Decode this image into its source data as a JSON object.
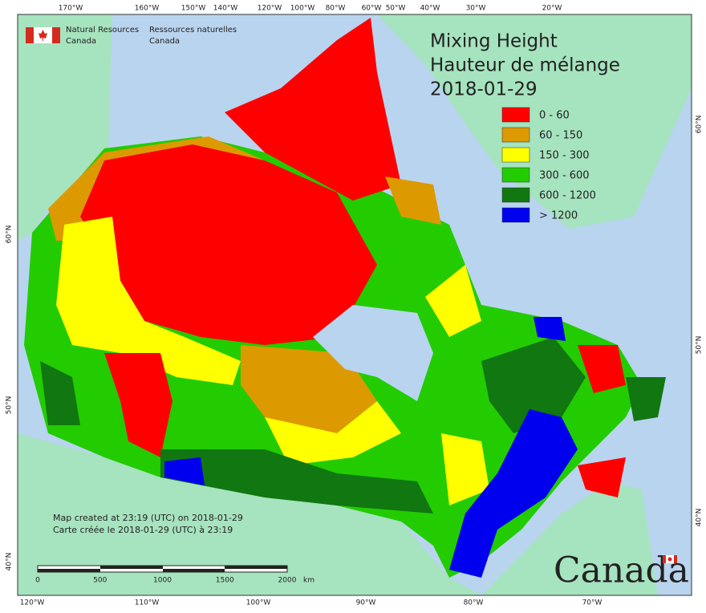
{
  "header": {
    "agency_en": [
      "Natural Resources",
      "Canada"
    ],
    "agency_fr": [
      "Ressources naturelles",
      "Canada"
    ]
  },
  "title": [
    "Mixing Height",
    "Hauteur de mélange",
    "2018-01-29"
  ],
  "legend": [
    {
      "label": "0 - 60",
      "color": "#ff0000"
    },
    {
      "label": "60 - 150",
      "color": "#dd9900"
    },
    {
      "label": "150 - 300",
      "color": "#ffff00"
    },
    {
      "label": "300 - 600",
      "color": "#22cc00"
    },
    {
      "label": "600 - 1200",
      "color": "#117711"
    },
    {
      "label": "> 1200",
      "color": "#0000ee"
    }
  ],
  "graticule": {
    "top": [
      "170°W",
      "160°W",
      "150°W",
      "140°W",
      "120°W",
      "100°W",
      "80°W",
      "60°W",
      "50°W",
      "40°W",
      "30°W",
      "20°W"
    ],
    "bottom": [
      "120°W",
      "110°W",
      "100°W",
      "90°W",
      "80°W",
      "70°W"
    ],
    "left": [
      "60°N",
      "50°N",
      "40°N"
    ],
    "right": [
      "60°N",
      "50°N",
      "40°N"
    ]
  },
  "credits": [
    "Map created at 23:19 (UTC) on 2018-01-29",
    "Carte créée le 2018-01-29 (UTC) à 23:19"
  ],
  "scale_bar": {
    "labels": [
      0,
      500,
      1000,
      1500,
      2000
    ],
    "unit": "km"
  },
  "wordmark": "Canada"
}
